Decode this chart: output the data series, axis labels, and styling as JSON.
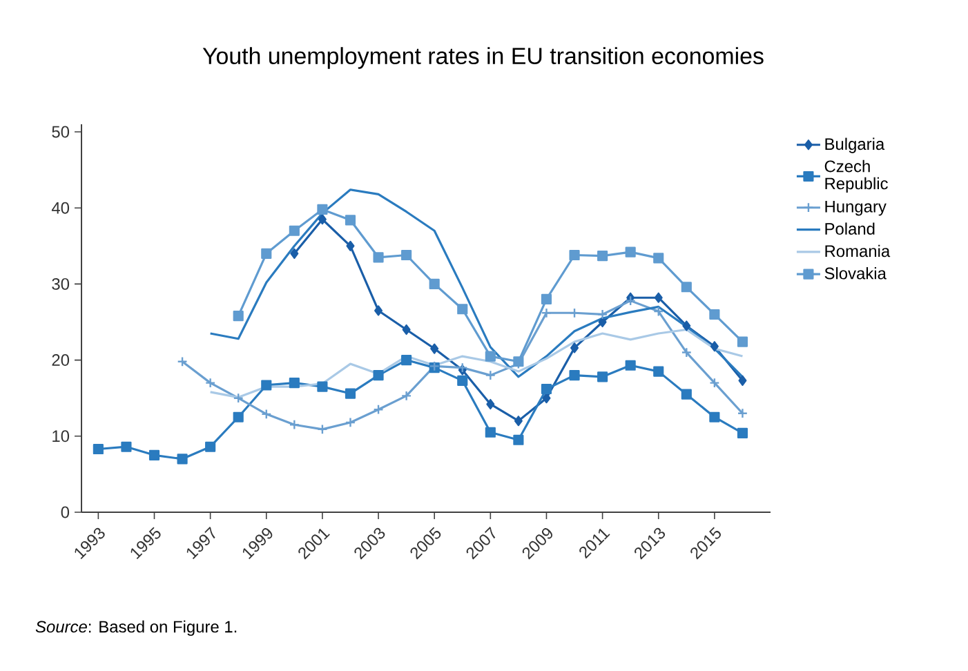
{
  "chart_data": {
    "type": "line",
    "title": "Youth unemployment rates in EU transition economies",
    "xlim": [
      1992.4,
      2017
    ],
    "ylim": [
      0,
      51
    ],
    "xticks": [
      1993,
      1995,
      1997,
      1999,
      2001,
      2003,
      2005,
      2007,
      2009,
      2011,
      2013,
      2015
    ],
    "yticks": [
      0,
      10,
      20,
      30,
      40,
      50
    ],
    "legend": "right",
    "line_style": "solid",
    "annotations": [
      "*Source*: Based on Figure 1."
    ],
    "series": [
      {
        "name": "Bulgaria",
        "color": "#1a5ea8",
        "marker": "diamond",
        "x": [
          2000,
          2001,
          2002,
          2003,
          2004,
          2005,
          2006,
          2007,
          2008,
          2009,
          2010,
          2011,
          2012,
          2013,
          2014,
          2015,
          2016
        ],
        "values": [
          34,
          38.5,
          35,
          26.5,
          24,
          21.5,
          18.7,
          14.2,
          12,
          15,
          21.6,
          25,
          28.2,
          28.2,
          24.5,
          21.8,
          17.3
        ]
      },
      {
        "name": "Czech Republic",
        "color": "#2a7bbf",
        "marker": "square",
        "x": [
          1993,
          1994,
          1995,
          1996,
          1997,
          1998,
          1999,
          2000,
          2001,
          2002,
          2003,
          2004,
          2005,
          2006,
          2007,
          2008,
          2009,
          2010,
          2011,
          2012,
          2013,
          2014,
          2015,
          2016
        ],
        "values": [
          8.3,
          8.6,
          7.5,
          7,
          8.6,
          12.5,
          16.7,
          17,
          16.5,
          15.6,
          18,
          20,
          19,
          17.3,
          10.5,
          9.5,
          16.2,
          18,
          17.8,
          19.3,
          18.5,
          15.5,
          12.5,
          10.4
        ]
      },
      {
        "name": "Hungary",
        "color": "#6a9fd0",
        "marker": "cross",
        "x": [
          1996,
          1997,
          1998,
          1999,
          2000,
          2001,
          2002,
          2003,
          2004,
          2005,
          2006,
          2007,
          2008,
          2009,
          2010,
          2011,
          2012,
          2013,
          2014,
          2015,
          2016
        ],
        "values": [
          19.8,
          17,
          15,
          12.9,
          11.5,
          10.9,
          11.8,
          13.5,
          15.3,
          19.2,
          19,
          18,
          19.5,
          26.2,
          26.2,
          26,
          27.8,
          26.4,
          21,
          17,
          13
        ]
      },
      {
        "name": "Poland",
        "color": "#2a7bbf",
        "marker": "none",
        "x": [
          1997,
          1998,
          1999,
          2000,
          2001,
          2002,
          2003,
          2004,
          2005,
          2006,
          2007,
          2008,
          2009,
          2010,
          2011,
          2012,
          2013,
          2014,
          2015,
          2016
        ],
        "values": [
          23.5,
          22.8,
          30.2,
          35,
          39.3,
          42.4,
          41.8,
          39.5,
          37,
          29.5,
          21.7,
          17.8,
          20.5,
          23.8,
          25.5,
          26.3,
          27,
          24.4,
          21.5,
          17.8
        ]
      },
      {
        "name": "Romania",
        "color": "#a9c9e6",
        "marker": "none",
        "x": [
          1997,
          1998,
          1999,
          2000,
          2001,
          2002,
          2003,
          2004,
          2005,
          2006,
          2007,
          2008,
          2009,
          2010,
          2011,
          2012,
          2013,
          2014,
          2015,
          2016
        ],
        "values": [
          15.8,
          15.1,
          16.5,
          16.5,
          16.9,
          19.5,
          18.2,
          20.5,
          19.3,
          20.5,
          19.8,
          18.5,
          20.2,
          22.4,
          23.5,
          22.7,
          23.5,
          24,
          21.5,
          20.5
        ]
      },
      {
        "name": "Slovakia",
        "color": "#5f9bd0",
        "marker": "square",
        "x": [
          1998,
          1999,
          2000,
          2001,
          2002,
          2003,
          2004,
          2005,
          2006,
          2007,
          2008,
          2009,
          2010,
          2011,
          2012,
          2013,
          2014,
          2015,
          2016
        ],
        "values": [
          25.8,
          34,
          37,
          39.8,
          38.4,
          33.5,
          33.8,
          30,
          26.7,
          20.5,
          19.8,
          28,
          33.8,
          33.7,
          34.2,
          33.4,
          29.6,
          26,
          22.4
        ]
      }
    ]
  }
}
